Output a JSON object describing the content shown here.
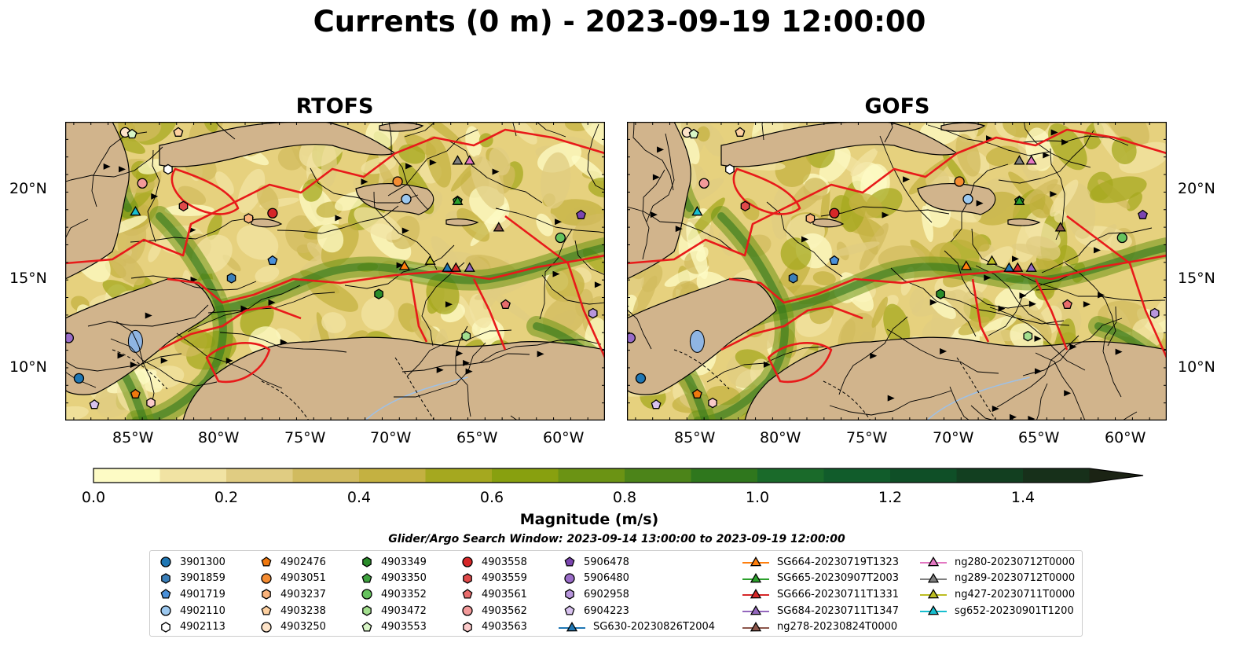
{
  "figure": {
    "title": "Currents (0 m) - 2023-09-19 12:00:00",
    "panels": [
      {
        "title": "RTOFS"
      },
      {
        "title": "GOFS"
      }
    ],
    "lat_ticks": [
      "20°N",
      "15°N",
      "10°N"
    ],
    "lon_ticks": [
      "85°W",
      "80°W",
      "75°W",
      "70°W",
      "65°W",
      "60°W"
    ],
    "extent": {
      "lon": [
        -89.5,
        -58.0
      ],
      "lat": [
        7.0,
        24.0
      ]
    }
  },
  "colorbar": {
    "label": "Magnitude (m/s)",
    "ticks": [
      "0.0",
      "0.2",
      "0.4",
      "0.6",
      "0.8",
      "1.0",
      "1.2",
      "1.4"
    ],
    "vmin": 0.0,
    "vmax": 1.5,
    "colors": [
      "#fdfbc5",
      "#f1e3a3",
      "#e0cc82",
      "#d1bb5f",
      "#c4b141",
      "#a5a81f",
      "#88a00f",
      "#6b9314",
      "#4c8419",
      "#2f771d",
      "#1a6a2a",
      "#115c2b",
      "#0f4f27",
      "#123f20",
      "#17301a",
      "#1b2314"
    ]
  },
  "search_window": "Glider/Argo Search Window: 2023-09-14 13:00:00 to 2023-09-19 12:00:00",
  "legend": {
    "items": [
      {
        "label": "3901300",
        "marker": "circle",
        "color": "#1f77b4"
      },
      {
        "label": "3901859",
        "marker": "hexagon",
        "color": "#3b7fb9"
      },
      {
        "label": "4901719",
        "marker": "pentagon",
        "color": "#4a90d9"
      },
      {
        "label": "4902110",
        "marker": "circle",
        "color": "#9cc8ef"
      },
      {
        "label": "4902113",
        "marker": "hexagon",
        "color": "#ffffff"
      },
      {
        "label": "4902476",
        "marker": "pentagon",
        "color": "#f0780e"
      },
      {
        "label": "4903051",
        "marker": "circle",
        "color": "#f58c32"
      },
      {
        "label": "4903237",
        "marker": "hexagon",
        "color": "#fbb37b"
      },
      {
        "label": "4903238",
        "marker": "pentagon",
        "color": "#fdd0a0"
      },
      {
        "label": "4903250",
        "marker": "circle",
        "color": "#fde3c8"
      },
      {
        "label": "4903349",
        "marker": "hexagon",
        "color": "#2a8c2a"
      },
      {
        "label": "4903350",
        "marker": "pentagon",
        "color": "#3fa23f"
      },
      {
        "label": "4903352",
        "marker": "circle",
        "color": "#66c35e"
      },
      {
        "label": "4903472",
        "marker": "hexagon",
        "color": "#a3df8e"
      },
      {
        "label": "4903553",
        "marker": "pentagon",
        "color": "#d8f5c6"
      },
      {
        "label": "4903558",
        "marker": "circle",
        "color": "#d62728"
      },
      {
        "label": "4903559",
        "marker": "hexagon",
        "color": "#e04a4a"
      },
      {
        "label": "4903561",
        "marker": "pentagon",
        "color": "#e86c6c"
      },
      {
        "label": "4903562",
        "marker": "circle",
        "color": "#f39a9a"
      },
      {
        "label": "4903563",
        "marker": "hexagon",
        "color": "#fbcaca"
      },
      {
        "label": "5906478",
        "marker": "pentagon",
        "color": "#7b45b0"
      },
      {
        "label": "5906480",
        "marker": "circle",
        "color": "#9a6cc8"
      },
      {
        "label": "6902958",
        "marker": "hexagon",
        "color": "#b896dd"
      },
      {
        "label": "6904223",
        "marker": "pentagon",
        "color": "#d8c2ef"
      },
      {
        "label": "SG630-20230826T2004",
        "marker": "triangle",
        "color": "#1f77b4"
      },
      {
        "label": "SG664-20230719T1323",
        "marker": "triangle",
        "color": "#ff7f0e"
      },
      {
        "label": "SG665-20230907T2003",
        "marker": "triangle",
        "color": "#2ca02c"
      },
      {
        "label": "SG666-20230711T1331",
        "marker": "triangle",
        "color": "#d62728"
      },
      {
        "label": "SG684-20230711T1347",
        "marker": "triangle",
        "color": "#9467bd"
      },
      {
        "label": "ng278-20230824T0000",
        "marker": "triangle",
        "color": "#8c564b"
      },
      {
        "label": "ng280-20230712T0000",
        "marker": "triangle",
        "color": "#e377c2"
      },
      {
        "label": "ng289-20230712T0000",
        "marker": "triangle",
        "color": "#7f7f7f"
      },
      {
        "label": "ng427-20230711T0000",
        "marker": "triangle",
        "color": "#bcbd22"
      },
      {
        "label": "sg652-20230901T1200",
        "marker": "triangle",
        "color": "#17becf"
      }
    ]
  },
  "map_points": [
    {
      "id": "3901300",
      "lon": -88.7,
      "lat": 9.4
    },
    {
      "id": "3901859",
      "lon": -79.8,
      "lat": 15.1
    },
    {
      "id": "4901719",
      "lon": -77.4,
      "lat": 16.1
    },
    {
      "id": "4902110",
      "lon": -69.6,
      "lat": 19.6
    },
    {
      "id": "4902113",
      "lon": -83.5,
      "lat": 21.3
    },
    {
      "id": "4902476",
      "lon": -85.4,
      "lat": 8.5
    },
    {
      "id": "4903051",
      "lon": -70.1,
      "lat": 20.6
    },
    {
      "id": "4903237",
      "lon": -78.8,
      "lat": 18.5
    },
    {
      "id": "4903238",
      "lon": -82.9,
      "lat": 23.4
    },
    {
      "id": "4903250",
      "lon": -86.0,
      "lat": 23.4
    },
    {
      "id": "4903349",
      "lon": -71.2,
      "lat": 14.2
    },
    {
      "id": "4903350",
      "lon": -66.6,
      "lat": 19.5
    },
    {
      "id": "4903352",
      "lon": -60.6,
      "lat": 17.4
    },
    {
      "id": "4903472",
      "lon": -66.1,
      "lat": 11.8
    },
    {
      "id": "4903553",
      "lon": -85.6,
      "lat": 23.3
    },
    {
      "id": "4903558",
      "lon": -77.4,
      "lat": 18.8
    },
    {
      "id": "4903559",
      "lon": -82.6,
      "lat": 19.2
    },
    {
      "id": "4903561",
      "lon": -63.8,
      "lat": 13.6
    },
    {
      "id": "4903562",
      "lon": -85.0,
      "lat": 20.5
    },
    {
      "id": "4903563",
      "lon": -84.5,
      "lat": 8.0
    },
    {
      "id": "5906478",
      "lon": -59.4,
      "lat": 18.7
    },
    {
      "id": "5906480",
      "lon": -89.3,
      "lat": 11.7
    },
    {
      "id": "6902958",
      "lon": -58.7,
      "lat": 13.1
    },
    {
      "id": "6904223",
      "lon": -87.8,
      "lat": 7.9
    },
    {
      "id": "SG630-20230826T2004",
      "lon": -67.2,
      "lat": 15.7
    },
    {
      "id": "SG664-20230719T1323",
      "lon": -69.7,
      "lat": 15.8
    },
    {
      "id": "SG665-20230907T2003",
      "lon": -66.6,
      "lat": 19.5
    },
    {
      "id": "SG666-20230711T1331",
      "lon": -66.7,
      "lat": 15.7
    },
    {
      "id": "SG684-20230711T1347",
      "lon": -65.9,
      "lat": 15.7
    },
    {
      "id": "ng278-20230824T0000",
      "lon": -64.2,
      "lat": 18.0
    },
    {
      "id": "ng280-20230712T0000",
      "lon": -65.9,
      "lat": 21.8
    },
    {
      "id": "ng289-20230712T0000",
      "lon": -66.6,
      "lat": 21.8
    },
    {
      "id": "ng427-20230711T0000",
      "lon": -68.2,
      "lat": 16.1
    },
    {
      "id": "sg652-20230901T1200",
      "lon": -85.4,
      "lat": 18.9
    }
  ]
}
